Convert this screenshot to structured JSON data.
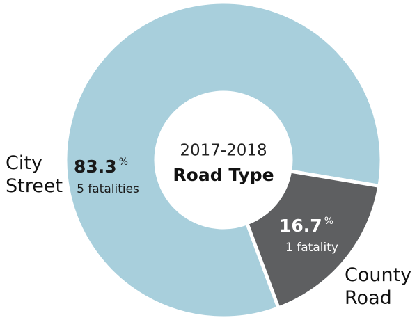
{
  "chart_data": {
    "type": "donut",
    "subtitle": "2017-2018",
    "title": "Road Type",
    "categories": [
      "City Street",
      "County Road"
    ],
    "values": [
      83.3,
      16.7
    ],
    "unit": "%",
    "sublabels": [
      "5 fatalities",
      "1 fatality"
    ],
    "colors": [
      "#a8cfdc",
      "#5e5f61"
    ]
  }
}
